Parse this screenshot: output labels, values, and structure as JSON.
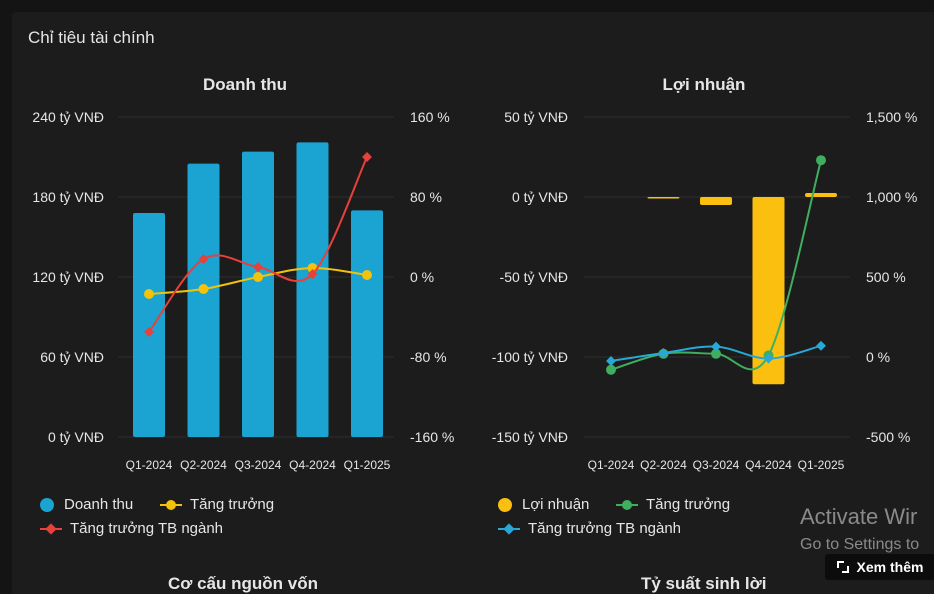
{
  "section_title": "Chỉ tiêu tài chính",
  "chart_data": [
    {
      "type": "bar",
      "title": "Doanh thu",
      "categories": [
        "Q1-2024",
        "Q2-2024",
        "Q3-2024",
        "Q4-2024",
        "Q1-2025"
      ],
      "left_axis": {
        "ticks": [
          "240 tỷ VNĐ",
          "180 tỷ VNĐ",
          "120 tỷ VNĐ",
          "60 tỷ VNĐ",
          "0 tỷ VNĐ"
        ],
        "ylim": [
          0,
          240
        ],
        "unit": "tỷ VNĐ"
      },
      "right_axis": {
        "ticks": [
          "160 %",
          "80 %",
          "0 %",
          "-80 %",
          "-160 %"
        ],
        "ylim": [
          -160,
          160
        ],
        "unit": "%"
      },
      "series": [
        {
          "name": "Doanh thu",
          "kind": "bar",
          "axis": "left",
          "color": "#1ba3d1",
          "values": [
            168,
            205,
            214,
            221,
            170
          ]
        },
        {
          "name": "Tăng trưởng",
          "kind": "line",
          "axis": "right",
          "color": "#f3c20b",
          "marker": "circle",
          "values": [
            -17,
            -12,
            0,
            9,
            2
          ]
        },
        {
          "name": "Tăng trưởng TB ngành",
          "kind": "line",
          "axis": "right",
          "color": "#e8403a",
          "marker": "diamond",
          "values": [
            -55,
            18,
            10,
            3,
            120
          ]
        }
      ],
      "legend": [
        {
          "label": "Doanh thu",
          "symbol": "dot",
          "color": "#1ba3d1"
        },
        {
          "label": "Tăng trưởng",
          "symbol": "line-circle",
          "color": "#f3c20b"
        },
        {
          "label": "Tăng trưởng TB ngành",
          "symbol": "line-diamond",
          "color": "#e8403a"
        }
      ]
    },
    {
      "type": "bar",
      "title": "Lợi nhuận",
      "categories": [
        "Q1-2024",
        "Q2-2024",
        "Q3-2024",
        "Q4-2024",
        "Q1-2025"
      ],
      "left_axis": {
        "ticks": [
          "50 tỷ VNĐ",
          "0 tỷ VNĐ",
          "-50 tỷ VNĐ",
          "-100 tỷ VNĐ",
          "-150 tỷ VNĐ"
        ],
        "ylim": [
          -150,
          50
        ],
        "unit": "tỷ VNĐ"
      },
      "right_axis": {
        "ticks": [
          "1,500 %",
          "1,000 %",
          "500 %",
          "0 %",
          "-500 %"
        ],
        "ylim": [
          -500,
          1500
        ],
        "unit": "%"
      },
      "series": [
        {
          "name": "Lợi nhuận",
          "kind": "bar",
          "axis": "left",
          "color": "#fbbf0f",
          "values": [
            0,
            -0.8,
            -5,
            -117,
            2.5
          ]
        },
        {
          "name": "Tăng trưởng",
          "kind": "line",
          "axis": "right",
          "color": "#3fae5f",
          "marker": "circle",
          "values": [
            -80,
            20,
            20,
            10,
            1230
          ]
        },
        {
          "name": "Tăng trưởng TB ngành",
          "kind": "line",
          "axis": "right",
          "color": "#27a8d6",
          "marker": "diamond",
          "values": [
            -25,
            25,
            65,
            -10,
            70
          ]
        }
      ],
      "legend": [
        {
          "label": "Lợi nhuận",
          "symbol": "dot",
          "color": "#fbbf0f"
        },
        {
          "label": "Tăng trưởng",
          "symbol": "line-circle",
          "color": "#3fae5f"
        },
        {
          "label": "Tăng trưởng TB ngành",
          "symbol": "line-diamond",
          "color": "#27a8d6"
        }
      ]
    }
  ],
  "bottom_titles": [
    "Cơ cấu nguồn vốn",
    "Tỷ suất sinh lời"
  ],
  "windows_watermark": {
    "line1": "Activate Wir",
    "line2": "Go to Settings to"
  },
  "more_button": {
    "label": "Xem thêm",
    "icon": "expand-icon"
  }
}
